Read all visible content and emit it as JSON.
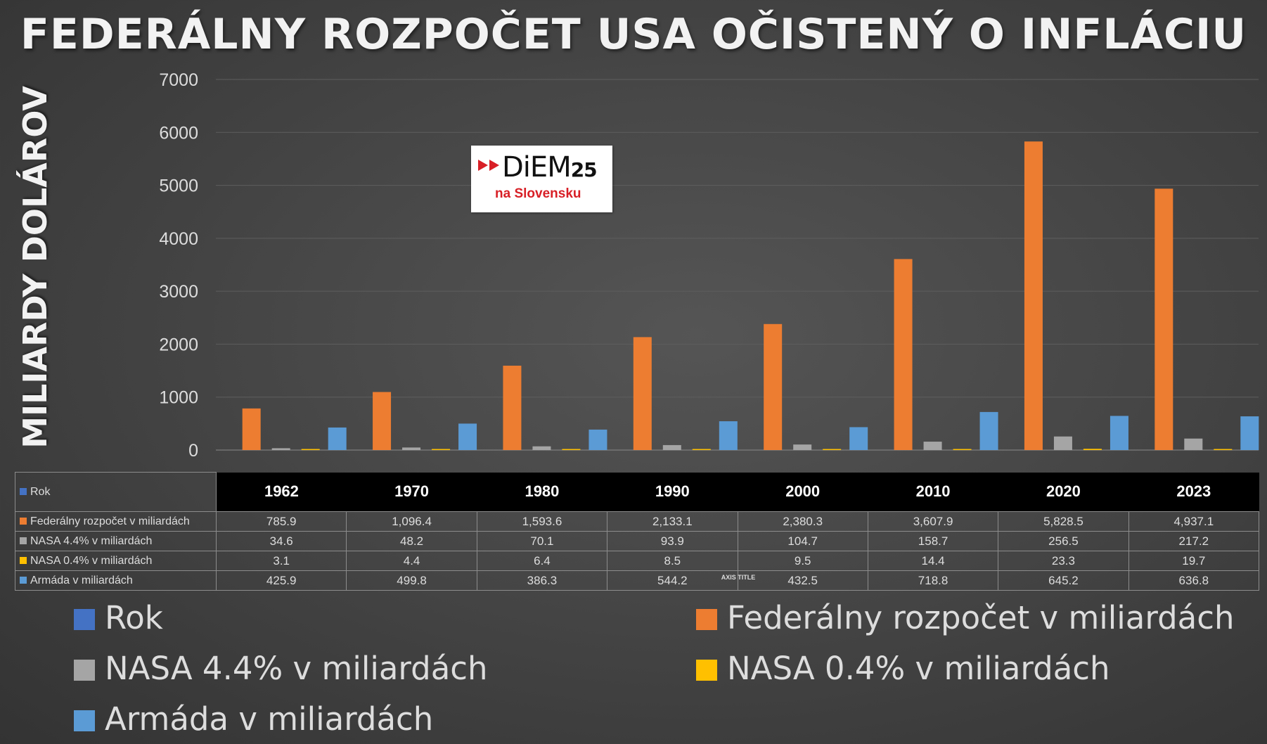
{
  "chart_data": {
    "type": "bar",
    "title": "FEDERÁLNY ROZPOČET USA OČISTENÝ O INFLÁCIU",
    "ylabel": "MILIARDY DOLÁROV",
    "xlabel": "AXIS TITLE",
    "ylim": [
      0,
      7000
    ],
    "yticks": [
      0,
      1000,
      2000,
      3000,
      4000,
      5000,
      6000,
      7000
    ],
    "grid": true,
    "legend_position": "bottom",
    "categories": [
      "1962",
      "1970",
      "1980",
      "1990",
      "2000",
      "2010",
      "2020",
      "2023"
    ],
    "series": [
      {
        "name": "Rok",
        "color": "#4472c4",
        "values": [
          1962,
          1970,
          1980,
          1990,
          2000,
          2010,
          2020,
          2023
        ]
      },
      {
        "name": "Federálny rozpočet v miliardách",
        "color": "#ed7d31",
        "values": [
          785.9,
          1096.4,
          1593.6,
          2133.1,
          2380.3,
          3607.9,
          5828.5,
          4937.1
        ],
        "labels": [
          "785.9",
          "1,096.4",
          "1,593.6",
          "2,133.1",
          "2,380.3",
          "3,607.9",
          "5,828.5",
          "4,937.1"
        ]
      },
      {
        "name": "NASA 4.4%  v miliardách",
        "color": "#a5a5a5",
        "values": [
          34.6,
          48.2,
          70.1,
          93.9,
          104.7,
          158.7,
          256.5,
          217.2
        ],
        "labels": [
          "34.6",
          "48.2",
          "70.1",
          "93.9",
          "104.7",
          "158.7",
          "256.5",
          "217.2"
        ]
      },
      {
        "name": "NASA 0.4%  v miliardách",
        "color": "#ffc000",
        "values": [
          3.1,
          4.4,
          6.4,
          8.5,
          9.5,
          14.4,
          23.3,
          19.7
        ],
        "labels": [
          "3.1",
          "4.4",
          "6.4",
          "8.5",
          "9.5",
          "14.4",
          "23.3",
          "19.7"
        ]
      },
      {
        "name": "Armáda  v miliardách",
        "color": "#5b9bd5",
        "values": [
          425.9,
          499.8,
          386.3,
          544.2,
          432.5,
          718.8,
          645.2,
          636.8
        ],
        "labels": [
          "425.9",
          "499.8",
          "386.3",
          "544.2",
          "432.5",
          "718.8",
          "645.2",
          "636.8"
        ]
      }
    ]
  },
  "logo": {
    "main": "DiEM",
    "number": "25",
    "sub": "na Slovensku"
  }
}
